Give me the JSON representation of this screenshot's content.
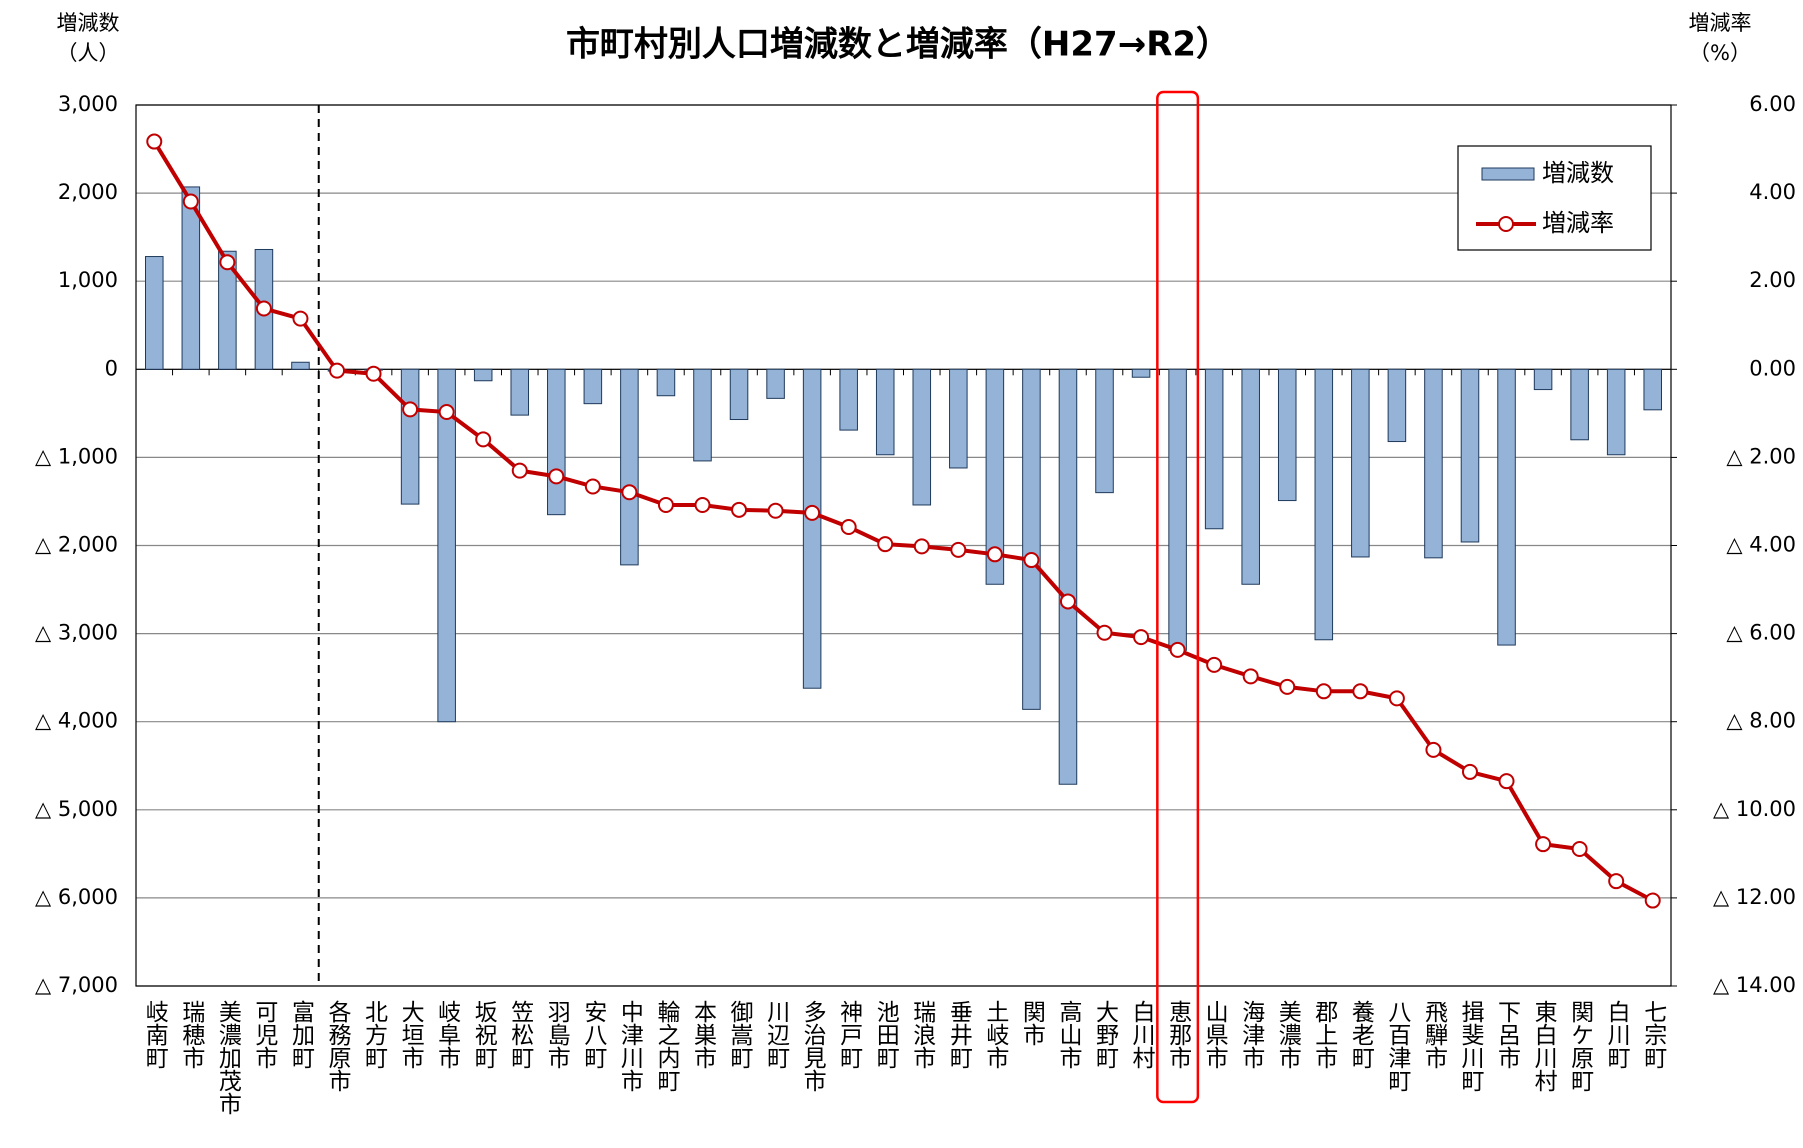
{
  "chart_data": {
    "type": "bar_line",
    "title": "市町村別人口増減数と増減率（H27→R2）",
    "y_axis_title": [
      "増減数",
      "（人）"
    ],
    "y2_axis_title": [
      "増減率",
      "（%）"
    ],
    "categories": [
      "岐南町",
      "瑞穂市",
      "美濃加茂市",
      "可児市",
      "富加町",
      "各務原市",
      "北方町",
      "大垣市",
      "岐阜市",
      "坂祝町",
      "笠松町",
      "羽島市",
      "安八町",
      "中津川市",
      "輪之内町",
      "本巣市",
      "御嵩町",
      "川辺町",
      "多治見市",
      "神戸町",
      "池田町",
      "瑞浪市",
      "垂井町",
      "土岐市",
      "関市",
      "高山市",
      "大野町",
      "白川村",
      "恵那市",
      "山県市",
      "海津市",
      "美濃市",
      "郡上市",
      "養老町",
      "八百津町",
      "飛騨市",
      "揖斐川町",
      "下呂市",
      "東白川村",
      "関ケ原町",
      "白川町",
      "七宗町"
    ],
    "series": [
      {
        "name": "増減数",
        "type": "bar",
        "color": "#95b3d7",
        "values": [
          1280,
          2070,
          1340,
          1360,
          80,
          -20,
          -10,
          -1530,
          -4000,
          -130,
          -520,
          -1650,
          -390,
          -2220,
          -300,
          -1040,
          -570,
          -330,
          -3620,
          -690,
          -970,
          -1540,
          -1120,
          -2440,
          -3860,
          -4710,
          -1400,
          -90,
          -3190,
          -1810,
          -2440,
          -1490,
          -3070,
          -2130,
          -820,
          -2140,
          -1960,
          -3130,
          -230,
          -800,
          -970,
          -460
        ]
      },
      {
        "name": "増減率",
        "type": "line",
        "axis": "y2",
        "color": "#c00000",
        "values": [
          5.17,
          3.81,
          2.43,
          1.38,
          1.15,
          -0.03,
          -0.1,
          -0.91,
          -0.97,
          -1.59,
          -2.3,
          -2.43,
          -2.66,
          -2.79,
          -3.08,
          -3.08,
          -3.19,
          -3.21,
          -3.26,
          -3.58,
          -3.97,
          -4.02,
          -4.1,
          -4.2,
          -4.33,
          -5.27,
          -5.98,
          -6.08,
          -6.37,
          -6.71,
          -6.97,
          -7.21,
          -7.31,
          -7.31,
          -7.47,
          -8.64,
          -9.14,
          -9.35,
          -10.78,
          -10.89,
          -11.62,
          -12.06
        ]
      }
    ],
    "ylim": [
      -7000,
      3000
    ],
    "yticks": [
      {
        "value": 3000,
        "label": "3,000"
      },
      {
        "value": 2000,
        "label": "2,000"
      },
      {
        "value": 1000,
        "label": "1,000"
      },
      0,
      {
        "value": -1000,
        "label": "△ 1,000"
      },
      {
        "value": -2000,
        "label": "△ 2,000"
      },
      {
        "value": -3000,
        "label": "△ 3,000"
      },
      {
        "value": -4000,
        "label": "△ 4,000"
      },
      {
        "value": -5000,
        "label": "△ 5,000"
      },
      {
        "value": -6000,
        "label": "△ 6,000"
      },
      {
        "value": -7000,
        "label": "△ 7,000"
      }
    ],
    "y2lim": [
      -14,
      6
    ],
    "y2ticks": [
      {
        "value": 6,
        "label": "6.00"
      },
      {
        "value": 4,
        "label": "4.00"
      },
      {
        "value": 2,
        "label": "2.00"
      },
      {
        "value": 0,
        "label": "0.00"
      },
      {
        "value": -2,
        "label": "△ 2.00"
      },
      {
        "value": -4,
        "label": "△ 4.00"
      },
      {
        "value": -6,
        "label": "△ 6.00"
      },
      {
        "value": -8,
        "label": "△ 8.00"
      },
      {
        "value": -10,
        "label": "△ 10.00"
      },
      {
        "value": -12,
        "label": "△ 12.00"
      },
      {
        "value": -14,
        "label": "△ 14.00"
      }
    ],
    "grid": true,
    "legend": "top-right"
  }
}
